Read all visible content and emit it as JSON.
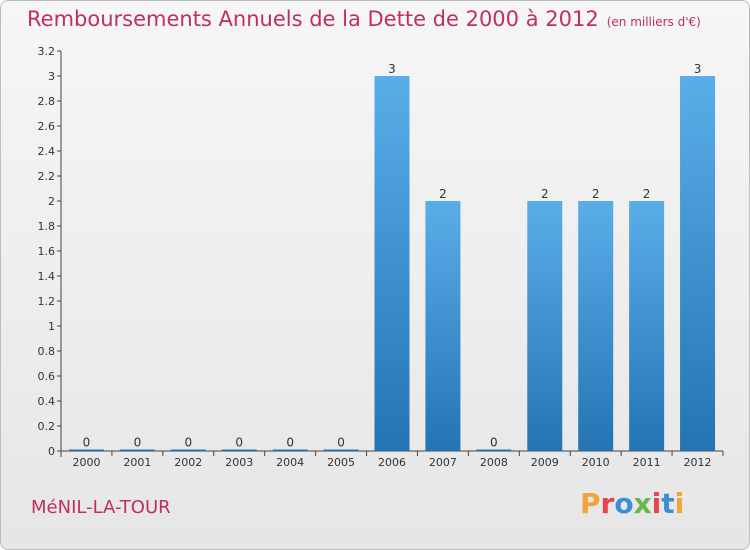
{
  "header": {
    "title": "Remboursements Annuels de la Dette de 2000 à 2012",
    "unit": "(en milliers d'€)"
  },
  "footer": {
    "commune": "MéNIL-LA-TOUR",
    "brand": "Proxiti",
    "brand_colors": [
      "#f2a33a",
      "#e8434f",
      "#3b8fd6",
      "#69b84a",
      "#e8434f",
      "#3b8fd6",
      "#f2a33a"
    ]
  },
  "colors": {
    "title": "#c0305a",
    "bar_light": "#5aaee8",
    "bar_dark": "#2474b4"
  },
  "chart_data": {
    "type": "bar",
    "categories": [
      "2000",
      "2001",
      "2002",
      "2003",
      "2004",
      "2005",
      "2006",
      "2007",
      "2008",
      "2009",
      "2010",
      "2011",
      "2012"
    ],
    "values": [
      0,
      0,
      0,
      0,
      0,
      0,
      3,
      2,
      0,
      2,
      2,
      2,
      3
    ],
    "value_labels": [
      "0",
      "0",
      "0",
      "0",
      "0",
      "0",
      "3",
      "2",
      "0",
      "2",
      "2",
      "2",
      "3"
    ],
    "y_ticks": [
      {
        "value": 0,
        "label": "0"
      },
      {
        "value": 0.2,
        "label": "0.2"
      },
      {
        "value": 0.4,
        "label": "0.4"
      },
      {
        "value": 0.6,
        "label": "0.6"
      },
      {
        "value": 0.8,
        "label": "0.8"
      },
      {
        "value": 1,
        "label": "1"
      },
      {
        "value": 1.2,
        "label": "1.2"
      },
      {
        "value": 1.4,
        "label": "1.4"
      },
      {
        "value": 1.6,
        "label": "1.6"
      },
      {
        "value": 1.8,
        "label": "1.8"
      },
      {
        "value": 2,
        "label": "2"
      },
      {
        "value": 2.2,
        "label": "2.2"
      },
      {
        "value": 2.4,
        "label": "2.4"
      },
      {
        "value": 2.6,
        "label": "2.6"
      },
      {
        "value": 2.8,
        "label": "2.8"
      },
      {
        "value": 3,
        "label": "3"
      },
      {
        "value": 3.2,
        "label": "3.2"
      }
    ],
    "ylim": [
      0,
      3.2
    ],
    "grid": false,
    "legend": "none"
  }
}
